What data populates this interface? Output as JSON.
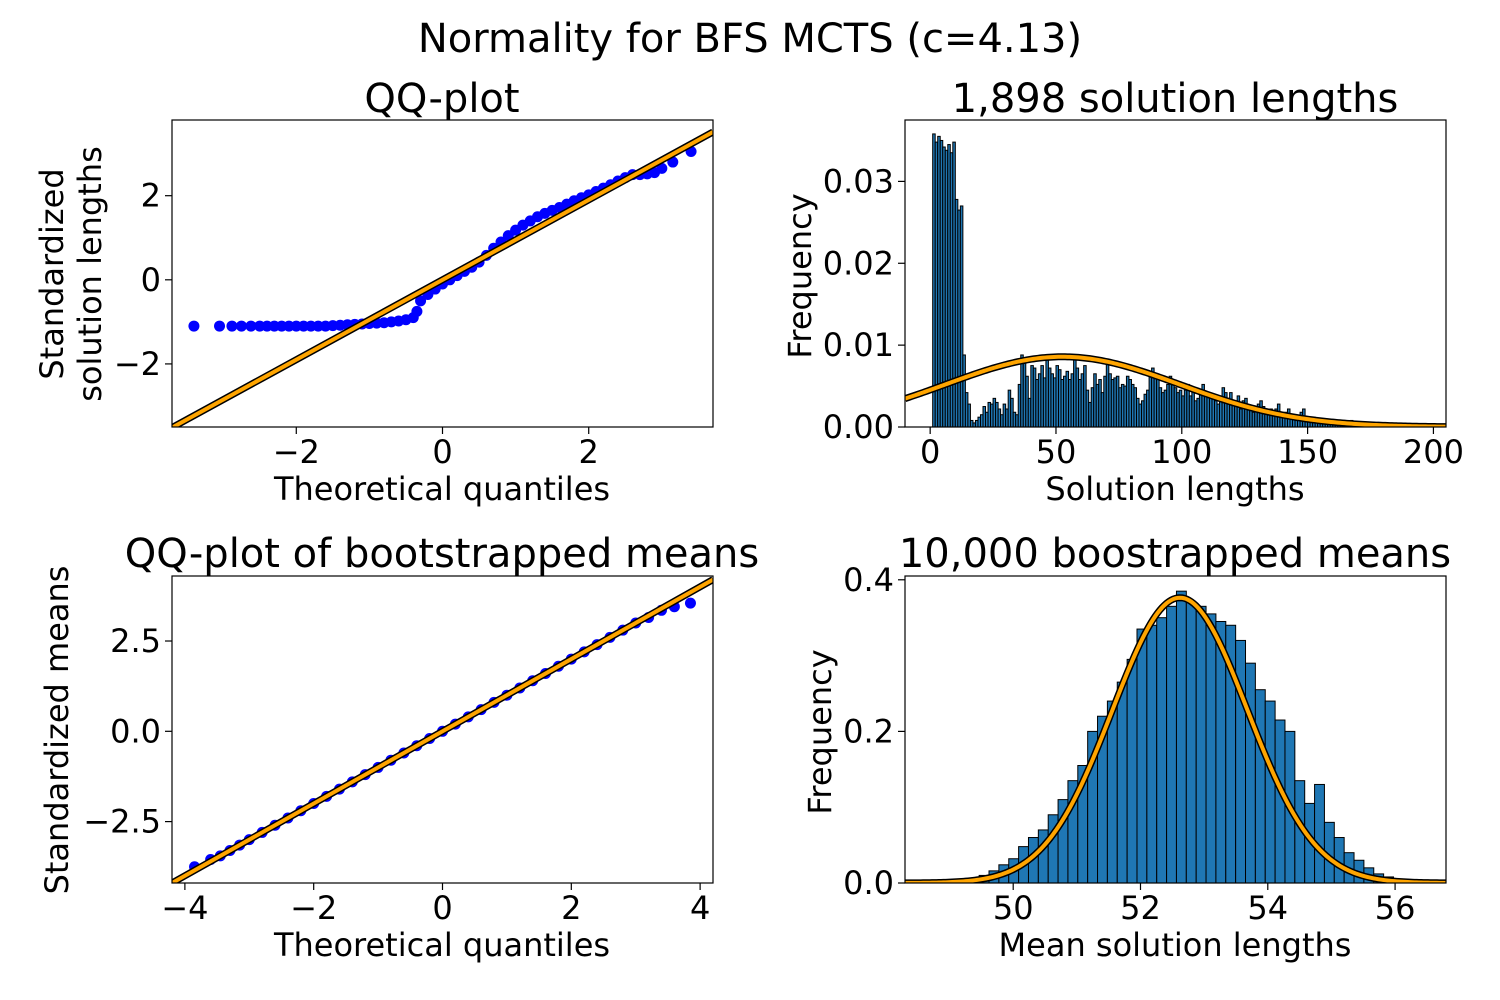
{
  "figure": {
    "title": "Normality for BFS MCTS (c=4.13)"
  },
  "colors": {
    "qq_points": "#0000ff",
    "fit_line": "#ffa500",
    "fit_outline": "#000000",
    "bar_fill": "#1f77b4",
    "bar_edge": "#000000"
  },
  "chart_data": [
    {
      "id": "qq1",
      "type": "scatter",
      "title": "QQ-plot",
      "xlabel": "Theoretical quantiles",
      "ylabel": [
        "Standardized",
        "solution lengths"
      ],
      "xlim": [
        -3.7,
        3.7
      ],
      "ylim": [
        -3.5,
        3.8
      ],
      "xticks": [
        -2,
        0,
        2
      ],
      "yticks": [
        -2,
        0,
        2
      ],
      "xtick_labels": [
        "−2",
        "0",
        "2"
      ],
      "ytick_labels": [
        "−2",
        "0",
        "2"
      ],
      "reference_line": {
        "slope": 0.95,
        "intercept": 0
      },
      "points": [
        [
          -3.4,
          -1.1
        ],
        [
          -3.05,
          -1.1
        ],
        [
          -2.88,
          -1.1
        ],
        [
          -2.75,
          -1.1
        ],
        [
          -2.62,
          -1.1
        ],
        [
          -2.5,
          -1.1
        ],
        [
          -2.4,
          -1.1
        ],
        [
          -2.3,
          -1.1
        ],
        [
          -2.2,
          -1.1
        ],
        [
          -2.1,
          -1.1
        ],
        [
          -2.0,
          -1.1
        ],
        [
          -1.9,
          -1.1
        ],
        [
          -1.8,
          -1.1
        ],
        [
          -1.7,
          -1.1
        ],
        [
          -1.6,
          -1.1
        ],
        [
          -1.5,
          -1.09
        ],
        [
          -1.4,
          -1.08
        ],
        [
          -1.3,
          -1.07
        ],
        [
          -1.2,
          -1.06
        ],
        [
          -1.1,
          -1.05
        ],
        [
          -1.0,
          -1.04
        ],
        [
          -0.9,
          -1.03
        ],
        [
          -0.8,
          -1.02
        ],
        [
          -0.7,
          -1.0
        ],
        [
          -0.6,
          -0.98
        ],
        [
          -0.5,
          -0.95
        ],
        [
          -0.4,
          -0.9
        ],
        [
          -0.35,
          -0.75
        ],
        [
          -0.3,
          -0.5
        ],
        [
          -0.2,
          -0.35
        ],
        [
          -0.1,
          -0.22
        ],
        [
          0.0,
          -0.1
        ],
        [
          0.1,
          0.0
        ],
        [
          0.2,
          0.1
        ],
        [
          0.3,
          0.2
        ],
        [
          0.4,
          0.3
        ],
        [
          0.5,
          0.42
        ],
        [
          0.6,
          0.58
        ],
        [
          0.7,
          0.75
        ],
        [
          0.8,
          0.9
        ],
        [
          0.9,
          1.05
        ],
        [
          1.0,
          1.18
        ],
        [
          1.1,
          1.3
        ],
        [
          1.2,
          1.4
        ],
        [
          1.3,
          1.5
        ],
        [
          1.4,
          1.58
        ],
        [
          1.5,
          1.65
        ],
        [
          1.6,
          1.72
        ],
        [
          1.7,
          1.8
        ],
        [
          1.8,
          1.88
        ],
        [
          1.9,
          1.95
        ],
        [
          2.0,
          2.02
        ],
        [
          2.1,
          2.1
        ],
        [
          2.2,
          2.18
        ],
        [
          2.3,
          2.26
        ],
        [
          2.4,
          2.35
        ],
        [
          2.5,
          2.43
        ],
        [
          2.6,
          2.5
        ],
        [
          2.7,
          2.5
        ],
        [
          2.8,
          2.52
        ],
        [
          2.9,
          2.55
        ],
        [
          3.0,
          2.65
        ],
        [
          3.15,
          2.8
        ],
        [
          3.4,
          3.05
        ]
      ]
    },
    {
      "id": "hist1",
      "type": "bar",
      "title": "1,898 solution lengths",
      "xlabel": "Solution lengths",
      "ylabel": "Frequency",
      "xlim": [
        -10,
        205
      ],
      "ylim": [
        0,
        0.0375
      ],
      "xticks": [
        0,
        50,
        100,
        150,
        200
      ],
      "yticks": [
        0,
        0.01,
        0.02,
        0.03
      ],
      "xtick_labels": [
        "0",
        "50",
        "100",
        "150",
        "200"
      ],
      "ytick_labels": [
        "0.00",
        "0.01",
        "0.02",
        "0.03"
      ],
      "bin_start": 1,
      "bin_width": 1,
      "values": [
        0.0358,
        0.0348,
        0.0355,
        0.035,
        0.0342,
        0.0338,
        0.0345,
        0.0335,
        0.0348,
        0.0278,
        0.0265,
        0.027,
        0.0088,
        0.0042,
        0.0028,
        0.0008,
        0.0005,
        0.0008,
        0.0012,
        0.0015,
        0.0025,
        0.0018,
        0.003,
        0.0028,
        0.0035,
        0.003,
        0.0022,
        0.0015,
        0.0028,
        0.0022,
        0.0045,
        0.0035,
        0.0018,
        0.0015,
        0.0052,
        0.0088,
        0.0078,
        0.0062,
        0.0035,
        0.0075,
        0.0072,
        0.0058,
        0.0065,
        0.0075,
        0.006,
        0.0085,
        0.0072,
        0.0065,
        0.006,
        0.0075,
        0.007,
        0.0058,
        0.0062,
        0.0068,
        0.0058,
        0.0065,
        0.0085,
        0.0072,
        0.0058,
        0.0065,
        0.0075,
        0.0045,
        0.003,
        0.0048,
        0.0065,
        0.0052,
        0.0058,
        0.0042,
        0.0062,
        0.0078,
        0.0065,
        0.0058,
        0.006,
        0.0062,
        0.0048,
        0.0052,
        0.005,
        0.0062,
        0.0058,
        0.0052,
        0.0048,
        0.0035,
        0.0028,
        0.0032,
        0.004,
        0.0045,
        0.0062,
        0.0072,
        0.0065,
        0.0058,
        0.0048,
        0.0042,
        0.0045,
        0.0052,
        0.0062,
        0.0058,
        0.0048,
        0.0042,
        0.0045,
        0.0038,
        0.0045,
        0.0052,
        0.0038,
        0.0045,
        0.0032,
        0.0035,
        0.0045,
        0.0052,
        0.0042,
        0.0038,
        0.0035,
        0.004,
        0.0032,
        0.0028,
        0.0035,
        0.0048,
        0.0042,
        0.0035,
        0.0042,
        0.0028,
        0.0025,
        0.0038,
        0.0022,
        0.0032,
        0.0035,
        0.0022,
        0.0025,
        0.0018,
        0.0022,
        0.0028,
        0.0032,
        0.0025,
        0.0018,
        0.0015,
        0.0022,
        0.0018,
        0.0022,
        0.0028,
        0.0015,
        0.0012,
        0.0018,
        0.0022,
        0.0015,
        0.0012,
        0.0008,
        0.0012,
        0.0018,
        0.0022,
        0.001,
        0.0012,
        0.0008,
        0.0012,
        0.0008,
        0.0005,
        0.001,
        0.0008,
        0.0005,
        0.0008,
        0.0005,
        0.0004,
        0.0008,
        0.0005,
        0.0003,
        0.0004,
        0.0003,
        0.0002,
        0.0008,
        0.0002,
        0.0003,
        0.0002,
        0.0001,
        0.0002
      ],
      "normal_fit": {
        "mean": 52.6,
        "sd": 46.5
      }
    },
    {
      "id": "qq2",
      "type": "scatter",
      "title": "QQ-plot of bootstrapped means",
      "xlabel": "Theoretical quantiles",
      "ylabel": [
        "Standardized means"
      ],
      "xlim": [
        -4.2,
        4.2
      ],
      "ylim": [
        -4.2,
        4.3
      ],
      "xticks": [
        -4,
        -2,
        0,
        2,
        4
      ],
      "yticks": [
        -2.5,
        0,
        2.5
      ],
      "xtick_labels": [
        "−4",
        "−2",
        "0",
        "2",
        "4"
      ],
      "ytick_labels": [
        "−2.5",
        "0.0",
        "2.5"
      ],
      "reference_line": {
        "slope": 1.0,
        "intercept": 0
      },
      "points": [
        [
          -3.85,
          -3.75
        ],
        [
          -3.6,
          -3.55
        ],
        [
          -3.45,
          -3.45
        ],
        [
          -3.3,
          -3.3
        ],
        [
          -3.15,
          -3.15
        ],
        [
          -3.0,
          -3.0
        ],
        [
          -2.8,
          -2.8
        ],
        [
          -2.6,
          -2.6
        ],
        [
          -2.4,
          -2.4
        ],
        [
          -2.2,
          -2.2
        ],
        [
          -2.0,
          -2.0
        ],
        [
          -1.8,
          -1.8
        ],
        [
          -1.6,
          -1.6
        ],
        [
          -1.4,
          -1.4
        ],
        [
          -1.2,
          -1.2
        ],
        [
          -1.0,
          -1.0
        ],
        [
          -0.8,
          -0.8
        ],
        [
          -0.6,
          -0.6
        ],
        [
          -0.4,
          -0.4
        ],
        [
          -0.2,
          -0.2
        ],
        [
          0.0,
          0.0
        ],
        [
          0.2,
          0.2
        ],
        [
          0.4,
          0.4
        ],
        [
          0.6,
          0.6
        ],
        [
          0.8,
          0.8
        ],
        [
          1.0,
          1.0
        ],
        [
          1.2,
          1.2
        ],
        [
          1.4,
          1.4
        ],
        [
          1.6,
          1.6
        ],
        [
          1.8,
          1.8
        ],
        [
          2.0,
          2.0
        ],
        [
          2.2,
          2.2
        ],
        [
          2.4,
          2.4
        ],
        [
          2.6,
          2.6
        ],
        [
          2.8,
          2.8
        ],
        [
          3.0,
          3.0
        ],
        [
          3.2,
          3.15
        ],
        [
          3.4,
          3.35
        ],
        [
          3.6,
          3.45
        ],
        [
          3.85,
          3.55
        ]
      ]
    },
    {
      "id": "hist2",
      "type": "bar",
      "title": "10,000 boostrapped means",
      "xlabel": "Mean solution lengths",
      "ylabel": "Frequency",
      "xlim": [
        48.3,
        56.8
      ],
      "ylim": [
        0,
        0.405
      ],
      "xticks": [
        50,
        52,
        54,
        56
      ],
      "yticks": [
        0,
        0.2,
        0.4
      ],
      "xtick_labels": [
        "50",
        "52",
        "54",
        "56"
      ],
      "ytick_labels": [
        "0.0",
        "0.2",
        "0.4"
      ],
      "bin_start": 49.0,
      "bin_width": 0.155,
      "values": [
        0.002,
        0.004,
        0.006,
        0.01,
        0.016,
        0.024,
        0.032,
        0.048,
        0.06,
        0.07,
        0.09,
        0.11,
        0.135,
        0.155,
        0.2,
        0.22,
        0.24,
        0.265,
        0.295,
        0.335,
        0.34,
        0.35,
        0.365,
        0.385,
        0.37,
        0.365,
        0.355,
        0.345,
        0.34,
        0.32,
        0.29,
        0.255,
        0.24,
        0.215,
        0.2,
        0.135,
        0.105,
        0.13,
        0.08,
        0.06,
        0.04,
        0.03,
        0.02,
        0.012,
        0.008,
        0.005,
        0.003,
        0.002
      ],
      "normal_fit": {
        "mean": 52.62,
        "sd": 1.06
      }
    }
  ]
}
